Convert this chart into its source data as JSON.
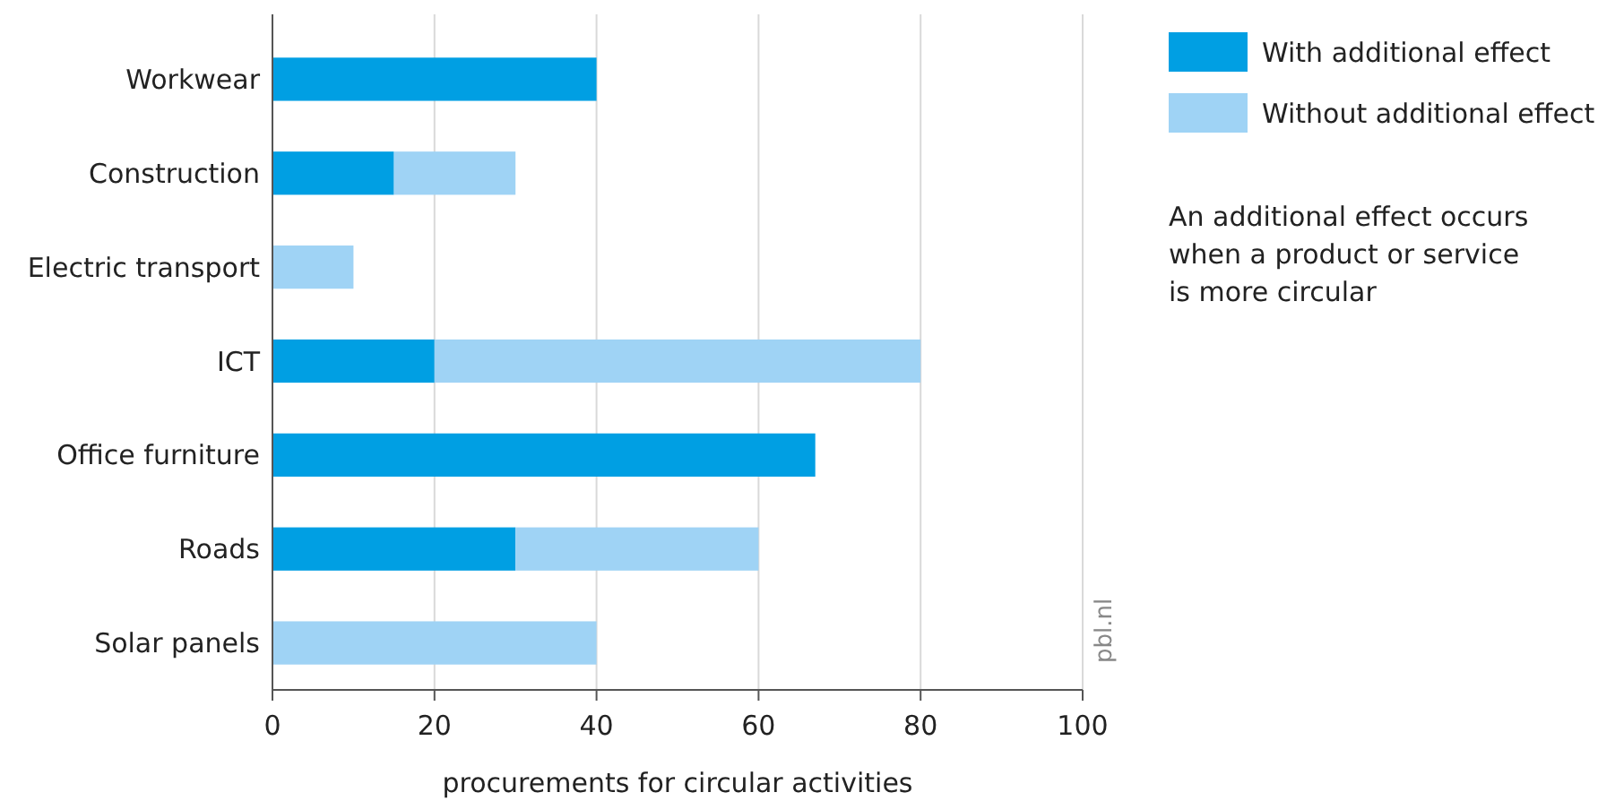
{
  "chart_data": {
    "type": "bar",
    "orientation": "horizontal",
    "stacked": true,
    "xlabel": "procurements for circular activities",
    "categories": [
      "Workwear",
      "Construction",
      "Electric transport",
      "ICT",
      "Office furniture",
      "Roads",
      "Solar panels"
    ],
    "series": [
      {
        "name": "With additional effect",
        "color": "#009fe3",
        "values": [
          40,
          15,
          null,
          20,
          67,
          30,
          null
        ]
      },
      {
        "name": "Without additional effect",
        "color": "#9fd3f5",
        "values": [
          null,
          15,
          10,
          60,
          null,
          30,
          40
        ]
      }
    ],
    "xlim": [
      0,
      100
    ],
    "xticks": [
      0,
      20,
      40,
      60,
      80,
      100
    ],
    "grid": "x",
    "legend": "right",
    "annotations": [
      "An additional effect occurs when a product or service is more circular",
      "pbl.nl"
    ]
  }
}
